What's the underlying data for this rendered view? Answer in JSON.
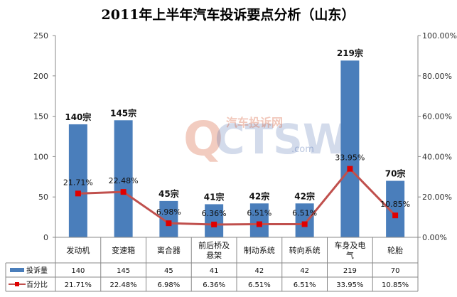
{
  "chart_data": {
    "type": "bar",
    "title": "2011年上半年汽车投诉要点分析（山东）",
    "categories": [
      "发动机",
      "变速箱",
      "离合器",
      "前后桥及悬架",
      "制动系统",
      "转向系统",
      "车身及电气",
      "轮胎"
    ],
    "category_lines": [
      [
        "发动机"
      ],
      [
        "变速箱"
      ],
      [
        "离合器"
      ],
      [
        "前后桥及",
        "悬架"
      ],
      [
        "制动系统"
      ],
      [
        "转向系统"
      ],
      [
        "车身及电",
        "气"
      ],
      [
        "轮胎"
      ]
    ],
    "series": [
      {
        "name": "投诉量",
        "kind": "bar",
        "axis": "left",
        "color": "#4a7ebb",
        "values": [
          140,
          145,
          45,
          41,
          42,
          42,
          219,
          70
        ],
        "labels": [
          "140宗",
          "145宗",
          "45宗",
          "41宗",
          "42宗",
          "42宗",
          "219宗",
          "70宗"
        ],
        "table_values": [
          "140",
          "145",
          "45",
          "41",
          "42",
          "42",
          "219",
          "70"
        ]
      },
      {
        "name": "百分比",
        "kind": "line",
        "axis": "right",
        "color": "#c0504d",
        "values": [
          21.71,
          22.48,
          6.98,
          6.36,
          6.51,
          6.51,
          33.95,
          10.85
        ],
        "labels": [
          "21.71%",
          "22.48%",
          "6.98%",
          "6.36%",
          "6.51%",
          "6.51%",
          "33.95%",
          "10.85%"
        ]
      }
    ],
    "y_left": {
      "min": 0,
      "max": 250,
      "ticks": [
        "0",
        "50",
        "100",
        "150",
        "200",
        "250"
      ]
    },
    "y_right": {
      "min": 0,
      "max": 100,
      "ticks": [
        "0.00%",
        "20.00%",
        "40.00%",
        "60.00%",
        "80.00%",
        "100.00%"
      ]
    },
    "grid": false,
    "data_table": true
  },
  "watermark": {
    "brand": "QCTSW",
    "brand_cn": "汽车投诉网",
    "domain": ".com"
  }
}
